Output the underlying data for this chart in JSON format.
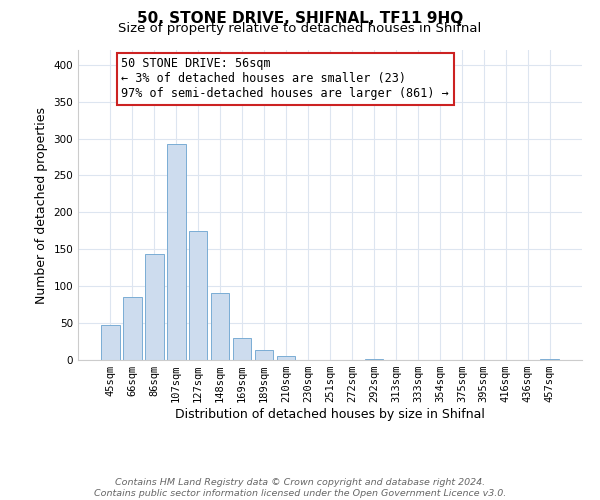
{
  "title": "50, STONE DRIVE, SHIFNAL, TF11 9HQ",
  "subtitle": "Size of property relative to detached houses in Shifnal",
  "xlabel": "Distribution of detached houses by size in Shifnal",
  "ylabel": "Number of detached properties",
  "bar_labels": [
    "45sqm",
    "66sqm",
    "86sqm",
    "107sqm",
    "127sqm",
    "148sqm",
    "169sqm",
    "189sqm",
    "210sqm",
    "230sqm",
    "251sqm",
    "272sqm",
    "292sqm",
    "313sqm",
    "333sqm",
    "354sqm",
    "375sqm",
    "395sqm",
    "416sqm",
    "436sqm",
    "457sqm"
  ],
  "bar_values": [
    47,
    86,
    144,
    293,
    175,
    91,
    30,
    14,
    5,
    0,
    0,
    0,
    2,
    0,
    0,
    0,
    0,
    0,
    0,
    0,
    2
  ],
  "bar_color": "#cddcee",
  "bar_edge_color": "#7aadd4",
  "ylim": [
    0,
    420
  ],
  "yticks": [
    0,
    50,
    100,
    150,
    200,
    250,
    300,
    350,
    400
  ],
  "annotation_text": "50 STONE DRIVE: 56sqm\n← 3% of detached houses are smaller (23)\n97% of semi-detached houses are larger (861) →",
  "footer_line1": "Contains HM Land Registry data © Crown copyright and database right 2024.",
  "footer_line2": "Contains public sector information licensed under the Open Government Licence v3.0.",
  "background_color": "#ffffff",
  "grid_color": "#dde5f0",
  "title_fontsize": 11,
  "subtitle_fontsize": 9.5,
  "axis_label_fontsize": 9,
  "tick_fontsize": 7.5,
  "footer_fontsize": 6.8,
  "annotation_fontsize": 8.5
}
